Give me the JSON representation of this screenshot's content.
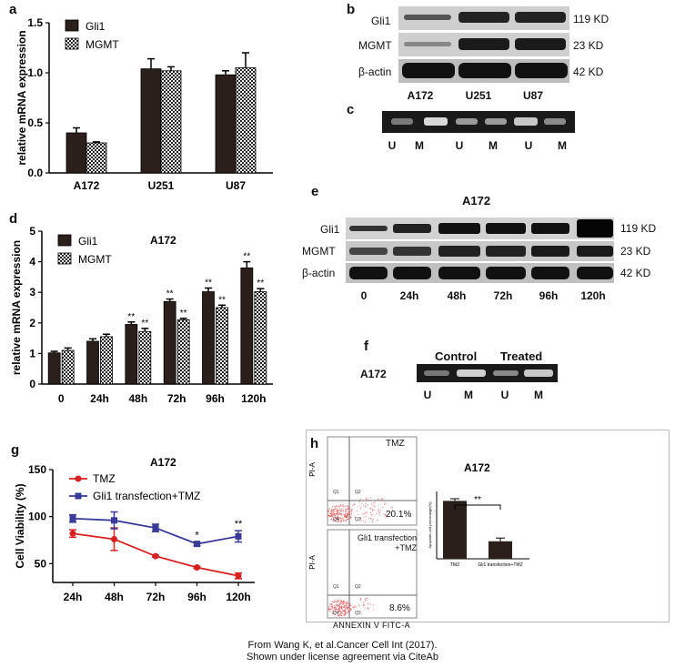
{
  "panels": {
    "a": "a",
    "b": "b",
    "c": "c",
    "d": "d",
    "e": "e",
    "f": "f",
    "g": "g",
    "h": "h"
  },
  "colors": {
    "gli1": "#2a1f1b",
    "mgmt_checker_a": "#222222",
    "mgmt_checker_b": "#ffffff",
    "tmz": "#d82020",
    "gli1_tmz": "#3a3a9a",
    "flow_dot": "#e05050"
  },
  "blot_labels": {
    "b": {
      "rows": [
        "Gli1",
        "MGMT",
        "β-actin"
      ],
      "kd": [
        "119 KD",
        "23 KD",
        "42 KD"
      ],
      "lanes": [
        "A172",
        "U251",
        "U87"
      ]
    },
    "c": {
      "lanes": [
        "U",
        "M",
        "U",
        "M",
        "U",
        "M"
      ]
    },
    "e": {
      "title": "A172",
      "rows": [
        "Gli1",
        "MGMT",
        "β-actin"
      ],
      "kd": [
        "119 KD",
        "23 KD",
        "42 KD"
      ],
      "lanes": [
        "0",
        "24h",
        "48h",
        "72h",
        "96h",
        "120h"
      ]
    },
    "f": {
      "cell": "A172",
      "groups": [
        "Control",
        "Treated"
      ],
      "lanes": [
        "U",
        "M",
        "U",
        "M"
      ]
    }
  },
  "flow": {
    "top_gate_label": "TMZ",
    "top_percent": "20.1%",
    "bottom_gate_label_line1": "Gli1 transfection",
    "bottom_gate_label_line2": "+TMZ",
    "bottom_percent": "8.6%",
    "y_label": "PI-A",
    "x_label": "ANNEXIN V FITC-A",
    "quadrants": [
      "Q1",
      "Q2",
      "Q4",
      "Q3"
    ]
  },
  "credit": {
    "line1": "From Wang K, et al.Cancer Cell Int (2017).",
    "line2": "Shown under license agreement via CiteAb"
  },
  "chart_data": [
    {
      "id": "a",
      "type": "bar",
      "title": "",
      "xlabel": "",
      "ylabel": "relative mRNA expression",
      "ylim": [
        0,
        1.5
      ],
      "yticks": [
        "0.0",
        "0.5",
        "1.0",
        "1.5"
      ],
      "categories": [
        "A172",
        "U251",
        "U87"
      ],
      "series": [
        {
          "name": "Gli1",
          "values": [
            0.4,
            1.04,
            0.98
          ],
          "errors": [
            0.05,
            0.1,
            0.04
          ]
        },
        {
          "name": "MGMT",
          "values": [
            0.3,
            1.02,
            1.05
          ],
          "errors": [
            0.01,
            0.04,
            0.15
          ]
        }
      ],
      "legend": "top-left"
    },
    {
      "id": "d",
      "type": "bar",
      "title": "A172",
      "xlabel": "",
      "ylabel": "relative mRNA expression",
      "ylim": [
        0,
        5
      ],
      "yticks": [
        "0",
        "1",
        "2",
        "3",
        "4",
        "5"
      ],
      "categories": [
        "0",
        "24h",
        "48h",
        "72h",
        "96h",
        "120h"
      ],
      "series": [
        {
          "name": "Gli1",
          "values": [
            1.02,
            1.4,
            1.95,
            2.7,
            3.02,
            3.8
          ],
          "errors": [
            0.05,
            0.08,
            0.08,
            0.08,
            0.12,
            0.2
          ],
          "sig": [
            "",
            "",
            "**",
            "**",
            "**",
            "**"
          ]
        },
        {
          "name": "MGMT",
          "values": [
            1.1,
            1.55,
            1.72,
            2.1,
            2.5,
            3.02
          ],
          "errors": [
            0.08,
            0.08,
            0.1,
            0.05,
            0.08,
            0.1
          ],
          "sig": [
            "",
            "",
            "**",
            "**",
            "**",
            "**"
          ]
        }
      ],
      "legend": "top-left"
    },
    {
      "id": "g",
      "type": "line",
      "title": "A172",
      "xlabel": "",
      "ylabel": "Cell Viability (%)",
      "ylim": [
        30,
        150
      ],
      "yticks": [
        "50",
        "100",
        "150"
      ],
      "categories": [
        "24h",
        "48h",
        "72h",
        "96h",
        "120h"
      ],
      "series": [
        {
          "name": "TMZ",
          "values": [
            82,
            76,
            58,
            46,
            37
          ],
          "errors": [
            4,
            12,
            1,
            1,
            3
          ]
        },
        {
          "name": "Gli1 transfection+TMZ",
          "values": [
            98,
            96,
            88,
            71,
            79
          ],
          "errors": [
            4,
            9,
            4,
            2,
            6
          ]
        }
      ],
      "sig": [
        "",
        "",
        "",
        "*",
        "**"
      ],
      "legend": "top-left"
    },
    {
      "id": "h",
      "type": "bar",
      "title": "A172",
      "xlabel": "",
      "ylabel": "Apoptotic cell percentage(%)",
      "ylim": [
        0,
        25
      ],
      "categories": [
        "TMZ",
        "Gli1 transfection+TMZ"
      ],
      "values": [
        21.5,
        6.5
      ],
      "errors": [
        0.8,
        1.2
      ],
      "sig": "**"
    }
  ]
}
